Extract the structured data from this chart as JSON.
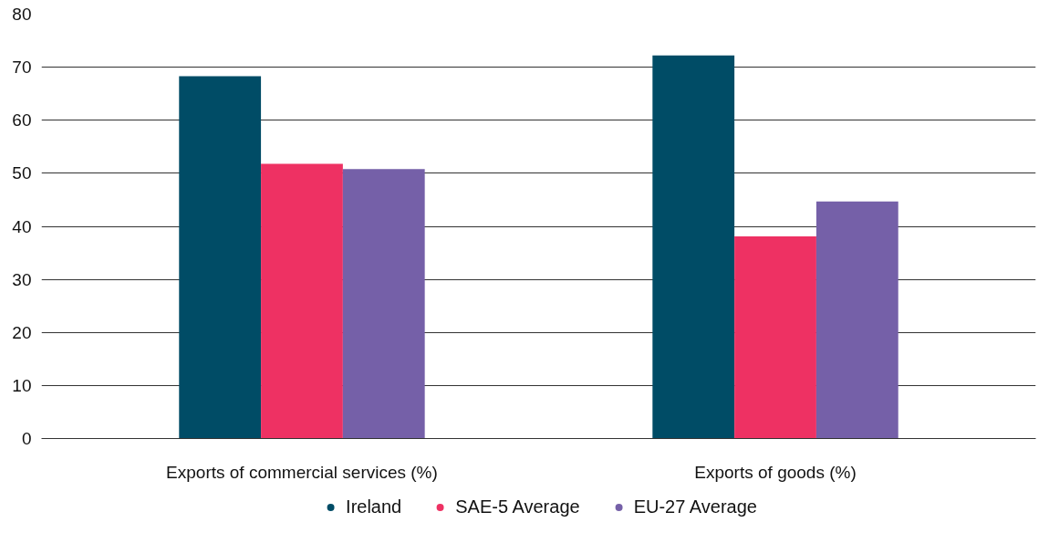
{
  "chart_data": {
    "type": "bar",
    "categories": [
      "Exports of commercial services (%)",
      "Exports of goods (%)"
    ],
    "series": [
      {
        "name": "Ireland",
        "color": "#004c66",
        "values": [
          68.3,
          72.2
        ]
      },
      {
        "name": "SAE-5 Average",
        "color": "#ee3163",
        "values": [
          51.8,
          38.1
        ]
      },
      {
        "name": "EU-27 Average",
        "color": "#7560a8",
        "values": [
          50.8,
          44.7
        ]
      }
    ],
    "ylim": [
      0,
      80
    ],
    "yticks": [
      0,
      10,
      20,
      30,
      40,
      50,
      60,
      70,
      80
    ],
    "grid": "y",
    "legend": "bottom",
    "marker": "circle"
  }
}
